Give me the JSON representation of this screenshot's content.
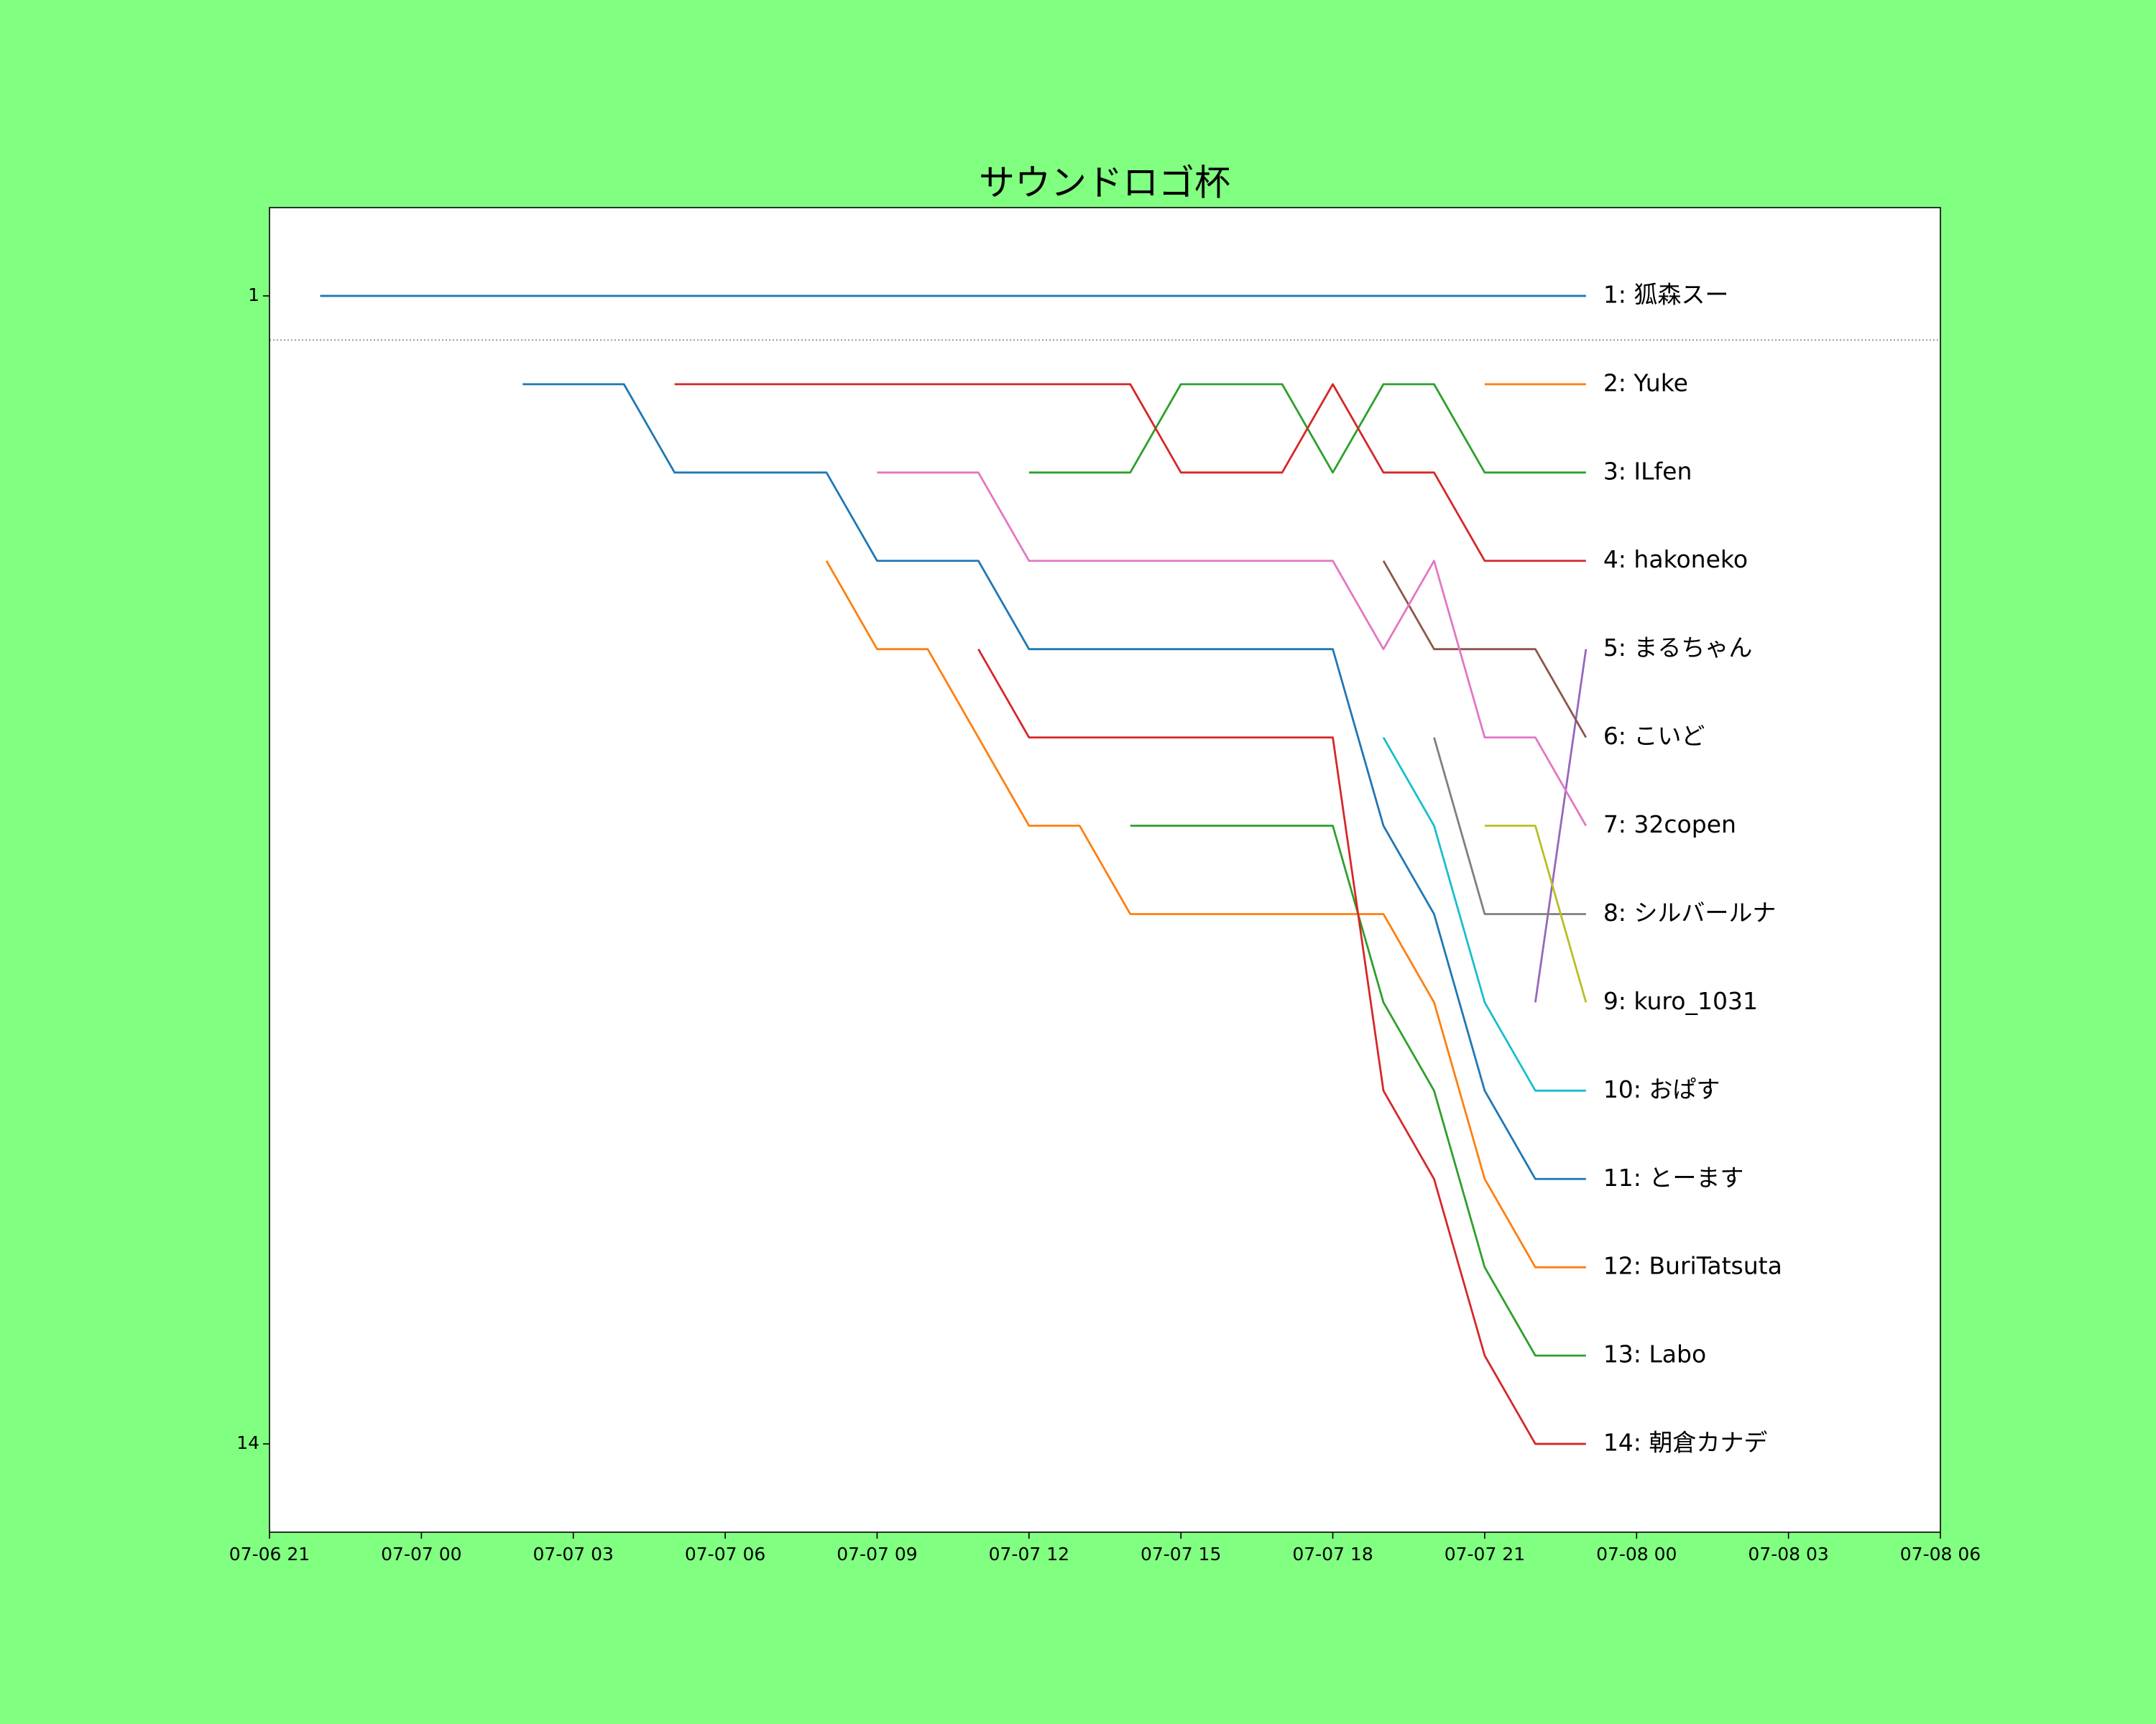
{
  "chart_data": {
    "type": "line",
    "title": "サウンドロゴ杯",
    "x": [
      "07-06 22",
      "07-06 23",
      "07-07 00",
      "07-07 01",
      "07-07 02",
      "07-07 03",
      "07-07 04",
      "07-07 05",
      "07-07 06",
      "07-07 07",
      "07-07 08",
      "07-07 09",
      "07-07 10",
      "07-07 11",
      "07-07 12",
      "07-07 13",
      "07-07 14",
      "07-07 15",
      "07-07 16",
      "07-07 17",
      "07-07 18",
      "07-07 19",
      "07-07 20",
      "07-07 21",
      "07-07 22",
      "07-07 23"
    ],
    "xlim": [
      "07-06 21",
      "07-08 06"
    ],
    "xticks": [
      "07-06 21",
      "07-07 00",
      "07-07 03",
      "07-07 06",
      "07-07 09",
      "07-07 12",
      "07-07 15",
      "07-07 18",
      "07-07 21",
      "07-08 00",
      "07-08 03",
      "07-08 06"
    ],
    "ylim": [
      15,
      0
    ],
    "yticks": [
      1,
      14
    ],
    "inverted_y": true,
    "hline": 1.5,
    "hline_style": "dotted",
    "series": [
      {
        "name": "1: 狐森スー",
        "color": "#1f77b4",
        "values": [
          1,
          1,
          1,
          1,
          1,
          1,
          1,
          1,
          1,
          1,
          1,
          1,
          1,
          1,
          1,
          1,
          1,
          1,
          1,
          1,
          1,
          1,
          1,
          1,
          1,
          1
        ]
      },
      {
        "name": "2: Yuke",
        "color": "#ff7f0e",
        "values": [
          null,
          null,
          null,
          null,
          null,
          null,
          null,
          null,
          null,
          null,
          null,
          null,
          null,
          null,
          null,
          null,
          null,
          null,
          null,
          null,
          null,
          null,
          null,
          2,
          2,
          2
        ]
      },
      {
        "name": "3: ILfen",
        "color": "#2ca02c",
        "values": [
          null,
          null,
          null,
          null,
          null,
          null,
          null,
          null,
          null,
          null,
          null,
          null,
          null,
          null,
          3,
          3,
          3,
          2,
          2,
          2,
          3,
          2,
          2,
          3,
          3,
          3
        ]
      },
      {
        "name": "4: hakoneko",
        "color": "#d62728",
        "values": [
          null,
          null,
          null,
          null,
          null,
          null,
          null,
          2,
          2,
          2,
          2,
          2,
          2,
          2,
          2,
          2,
          2,
          3,
          3,
          3,
          2,
          3,
          3,
          4,
          4,
          4
        ]
      },
      {
        "name": "5: まるちゃん",
        "color": "#9467bd",
        "values": [
          null,
          null,
          null,
          null,
          null,
          null,
          null,
          null,
          null,
          null,
          null,
          null,
          null,
          null,
          null,
          null,
          null,
          null,
          null,
          null,
          null,
          null,
          null,
          null,
          9,
          5
        ]
      },
      {
        "name": "6: こいど",
        "color": "#8c564b",
        "values": [
          null,
          null,
          null,
          null,
          null,
          null,
          null,
          null,
          null,
          null,
          null,
          null,
          null,
          null,
          null,
          null,
          null,
          null,
          null,
          null,
          null,
          4,
          5,
          5,
          5,
          6
        ]
      },
      {
        "name": "7: 32copen",
        "color": "#e377c2",
        "values": [
          null,
          null,
          null,
          null,
          null,
          null,
          null,
          null,
          null,
          null,
          null,
          3,
          3,
          3,
          4,
          4,
          4,
          4,
          4,
          4,
          4,
          5,
          4,
          6,
          6,
          7
        ]
      },
      {
        "name": "8: シルバールナ",
        "color": "#7f7f7f",
        "values": [
          null,
          null,
          null,
          null,
          null,
          null,
          null,
          null,
          null,
          null,
          null,
          null,
          null,
          null,
          null,
          null,
          null,
          null,
          null,
          null,
          null,
          null,
          6,
          8,
          8,
          8
        ]
      },
      {
        "name": "9: kuro_1031",
        "color": "#bcbd22",
        "values": [
          null,
          null,
          null,
          null,
          null,
          null,
          null,
          null,
          null,
          null,
          null,
          null,
          null,
          null,
          null,
          null,
          null,
          null,
          null,
          null,
          null,
          null,
          null,
          7,
          7,
          9
        ]
      },
      {
        "name": "10: おぱす",
        "color": "#17becf",
        "values": [
          null,
          null,
          null,
          null,
          null,
          null,
          null,
          null,
          null,
          null,
          null,
          null,
          null,
          null,
          null,
          null,
          null,
          null,
          null,
          null,
          null,
          6,
          7,
          9,
          10,
          10
        ]
      },
      {
        "name": "11: とーます",
        "color": "#1f77b4",
        "values": [
          null,
          null,
          null,
          null,
          2,
          2,
          2,
          3,
          3,
          3,
          3,
          4,
          4,
          4,
          5,
          5,
          5,
          5,
          5,
          5,
          5,
          7,
          8,
          10,
          11,
          11
        ]
      },
      {
        "name": "12: BuriTatsuta",
        "color": "#ff7f0e",
        "values": [
          null,
          null,
          null,
          null,
          null,
          null,
          null,
          null,
          null,
          null,
          4,
          5,
          5,
          6,
          7,
          7,
          8,
          8,
          8,
          8,
          8,
          8,
          9,
          11,
          12,
          12
        ]
      },
      {
        "name": "13: Labo",
        "color": "#2ca02c",
        "values": [
          null,
          null,
          null,
          null,
          null,
          null,
          null,
          null,
          null,
          null,
          null,
          null,
          null,
          null,
          null,
          null,
          7,
          7,
          7,
          7,
          7,
          9,
          10,
          12,
          13,
          13
        ]
      },
      {
        "name": "14: 朝倉カナデ",
        "color": "#d62728",
        "values": [
          null,
          null,
          null,
          null,
          null,
          null,
          null,
          null,
          null,
          null,
          null,
          null,
          null,
          5,
          6,
          6,
          6,
          6,
          6,
          6,
          6,
          10,
          11,
          13,
          14,
          14
        ]
      }
    ]
  }
}
